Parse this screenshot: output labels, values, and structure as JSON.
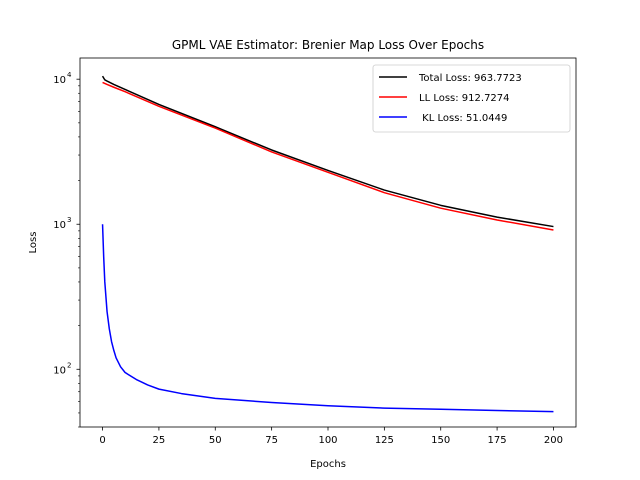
{
  "chart_data": {
    "type": "line",
    "title": "GPML VAE Estimator: Brenier Map Loss Over Epochs",
    "xlabel": "Epochs",
    "ylabel": "Loss",
    "yscale": "log",
    "xlim": [
      -10,
      210
    ],
    "ylim": [
      40,
      14000
    ],
    "xticks": [
      0,
      25,
      50,
      75,
      100,
      125,
      150,
      175,
      200
    ],
    "yticks": [
      {
        "value": 100,
        "base": "10",
        "exp": "2"
      },
      {
        "value": 1000,
        "base": "10",
        "exp": "3"
      },
      {
        "value": 10000,
        "base": "10",
        "exp": "4"
      }
    ],
    "grid": false,
    "legend_position": "top-right",
    "series": [
      {
        "name": "Total Loss: 963.7723",
        "color": "#000000",
        "x": [
          0,
          1,
          2,
          5,
          10,
          25,
          50,
          75,
          100,
          125,
          150,
          175,
          200
        ],
        "y": [
          10500,
          9900,
          9700,
          9200,
          8500,
          6700,
          4700,
          3250,
          2350,
          1720,
          1350,
          1120,
          963.77
        ]
      },
      {
        "name": "LL Loss: 912.7274",
        "color": "#ff0000",
        "x": [
          0,
          1,
          2,
          5,
          10,
          25,
          50,
          75,
          100,
          125,
          150,
          175,
          200
        ],
        "y": [
          9500,
          9350,
          9200,
          8800,
          8200,
          6500,
          4600,
          3150,
          2280,
          1650,
          1290,
          1070,
          912.73
        ]
      },
      {
        "name": " KL Loss: 51.0449",
        "color": "#0000ff",
        "x": [
          0,
          0.5,
          1,
          2,
          3,
          4,
          5,
          6,
          8,
          10,
          15,
          20,
          25,
          35,
          50,
          75,
          100,
          125,
          150,
          175,
          200
        ],
        "y": [
          1000,
          600,
          400,
          250,
          190,
          155,
          135,
          120,
          104,
          95,
          85,
          78,
          73,
          68,
          63,
          59,
          56,
          54,
          53,
          52,
          51.04
        ]
      }
    ]
  }
}
